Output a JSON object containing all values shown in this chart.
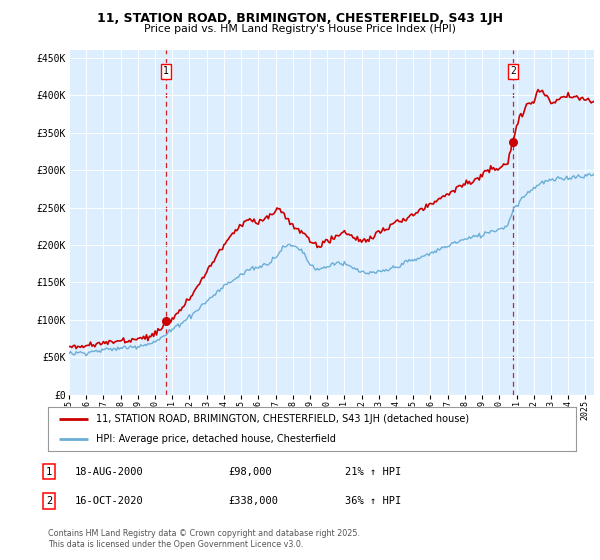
{
  "title": "11, STATION ROAD, BRIMINGTON, CHESTERFIELD, S43 1JH",
  "subtitle": "Price paid vs. HM Land Registry's House Price Index (HPI)",
  "ylim": [
    0,
    460000
  ],
  "yticks": [
    0,
    50000,
    100000,
    150000,
    200000,
    250000,
    300000,
    350000,
    400000,
    450000
  ],
  "ytick_labels": [
    "£0",
    "£50K",
    "£100K",
    "£150K",
    "£200K",
    "£250K",
    "£300K",
    "£350K",
    "£400K",
    "£450K"
  ],
  "hpi_color": "#6baed6",
  "price_color": "#cc0000",
  "legend_line1": "11, STATION ROAD, BRIMINGTON, CHESTERFIELD, S43 1JH (detached house)",
  "legend_line2": "HPI: Average price, detached house, Chesterfield",
  "note1_label": "1",
  "note1_date": "18-AUG-2000",
  "note1_price": "£98,000",
  "note1_hpi": "21% ↑ HPI",
  "note2_label": "2",
  "note2_date": "16-OCT-2020",
  "note2_price": "£338,000",
  "note2_hpi": "36% ↑ HPI",
  "footer": "Contains HM Land Registry data © Crown copyright and database right 2025.\nThis data is licensed under the Open Government Licence v3.0.",
  "bg_color": "#ffffff",
  "plot_bg_color": "#ddeeff",
  "sale1_x": 2000.615,
  "sale1_y": 98000,
  "sale2_x": 2020.79,
  "sale2_y": 338000,
  "xlim_left": 1995,
  "xlim_right": 2025.5
}
